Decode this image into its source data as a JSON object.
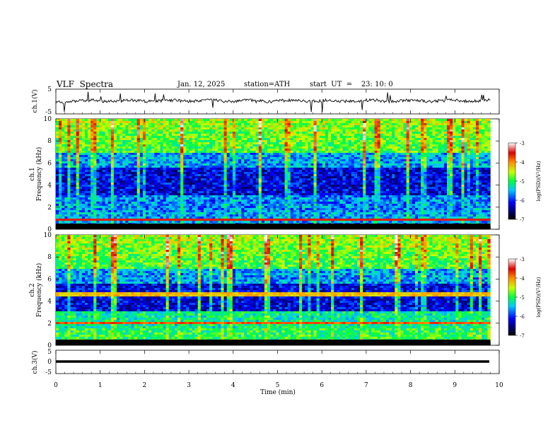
{
  "header": {
    "title": "VLF  Spectra",
    "date": "Jan. 12, 2025",
    "station": "station=ATH",
    "start_ut": "start  UT  =    23: 10: 0"
  },
  "chart_data": [
    {
      "type": "line",
      "panel": "ch.1 time series",
      "ylabel": "ch.1(V)",
      "ylim": [
        -5,
        5
      ],
      "yticks": [
        5,
        -5
      ],
      "xlim": [
        0,
        10
      ],
      "data_extent_min": [
        0,
        9.8
      ],
      "series": [
        {
          "values_description_level": 0.3,
          "amplitude_v": 0.5,
          "spikes": true
        }
      ]
    },
    {
      "type": "heatmap",
      "panel": "ch.1 spectrogram",
      "ylabel": "ch.1\nFrequency  (kHz)",
      "ylim": [
        0,
        10
      ],
      "yticks": [
        0,
        2,
        4,
        6,
        8,
        10
      ],
      "xlim": [
        0,
        10
      ],
      "colorbar": {
        "label": "log(PSD)(V²/Hz)",
        "range": [
          -7,
          -3
        ],
        "ticks": [
          -3,
          -4,
          -5,
          -6,
          -7
        ]
      }
    },
    {
      "type": "heatmap",
      "panel": "ch.2 spectrogram",
      "ylabel": "ch.2\nFrequency  (kHz)",
      "ylim": [
        0,
        10
      ],
      "yticks": [
        0,
        2,
        4,
        6,
        8,
        10
      ],
      "xlim": [
        0,
        10
      ],
      "colorbar": {
        "label": "log(PSD)(V²/Hz)",
        "range": [
          -7,
          -3
        ],
        "ticks": [
          -3,
          -4,
          -5,
          -6,
          -7
        ]
      }
    },
    {
      "type": "line",
      "panel": "ch.3 time series",
      "ylabel": "ch.3(V)",
      "ylim": [
        -5,
        5
      ],
      "yticks": [
        5,
        0,
        -5
      ],
      "xlim": [
        0,
        10
      ],
      "series": [
        {
          "level_v": -0.3,
          "amplitude_v": 0.3
        }
      ]
    }
  ],
  "xaxis": {
    "label": "Time  (min)",
    "ticks": [
      "0",
      "1",
      "2",
      "3",
      "4",
      "5",
      "6",
      "7",
      "8",
      "9",
      "10"
    ]
  },
  "colorbar_label": "log(PSD)(V²/Hz)",
  "colorbar_ticks": [
    "-3",
    "-4",
    "-5",
    "-6",
    "-7"
  ]
}
